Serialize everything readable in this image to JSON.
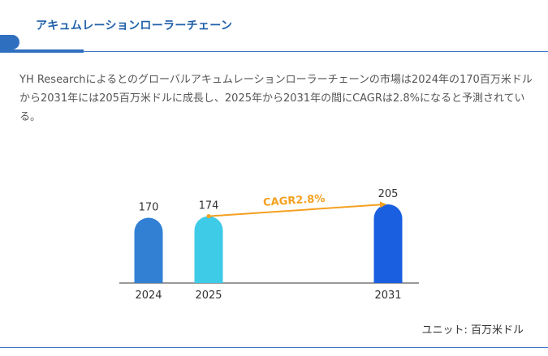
{
  "header": {
    "title": "アキュムレーションローラーチェーン"
  },
  "description": "YH Researchによるとのグローバルアキュムレーションローラーチェーンの市場は2024年の170百万米ドルから2031年には205百万米ドルに成長し、2025年から2031年の間にCAGRは2.8%になると予測されている。",
  "footer": {
    "unit_label": "ユニット: 百万米ドル"
  },
  "colors": {
    "title": "#1f5fa8",
    "accent": "#2f6fc0",
    "cagr_arrow": "#f4a020"
  },
  "chart_data": {
    "type": "bar",
    "categories": [
      "2024",
      "2025",
      "2031"
    ],
    "values": [
      170,
      174,
      205
    ],
    "bar_colors": [
      "#3180d4",
      "#3ecbe8",
      "#1a5fe0"
    ],
    "annotation": {
      "label": "CAGR2.8%",
      "from": "2025",
      "to": "2031"
    },
    "ylim": [
      0,
      210
    ]
  }
}
